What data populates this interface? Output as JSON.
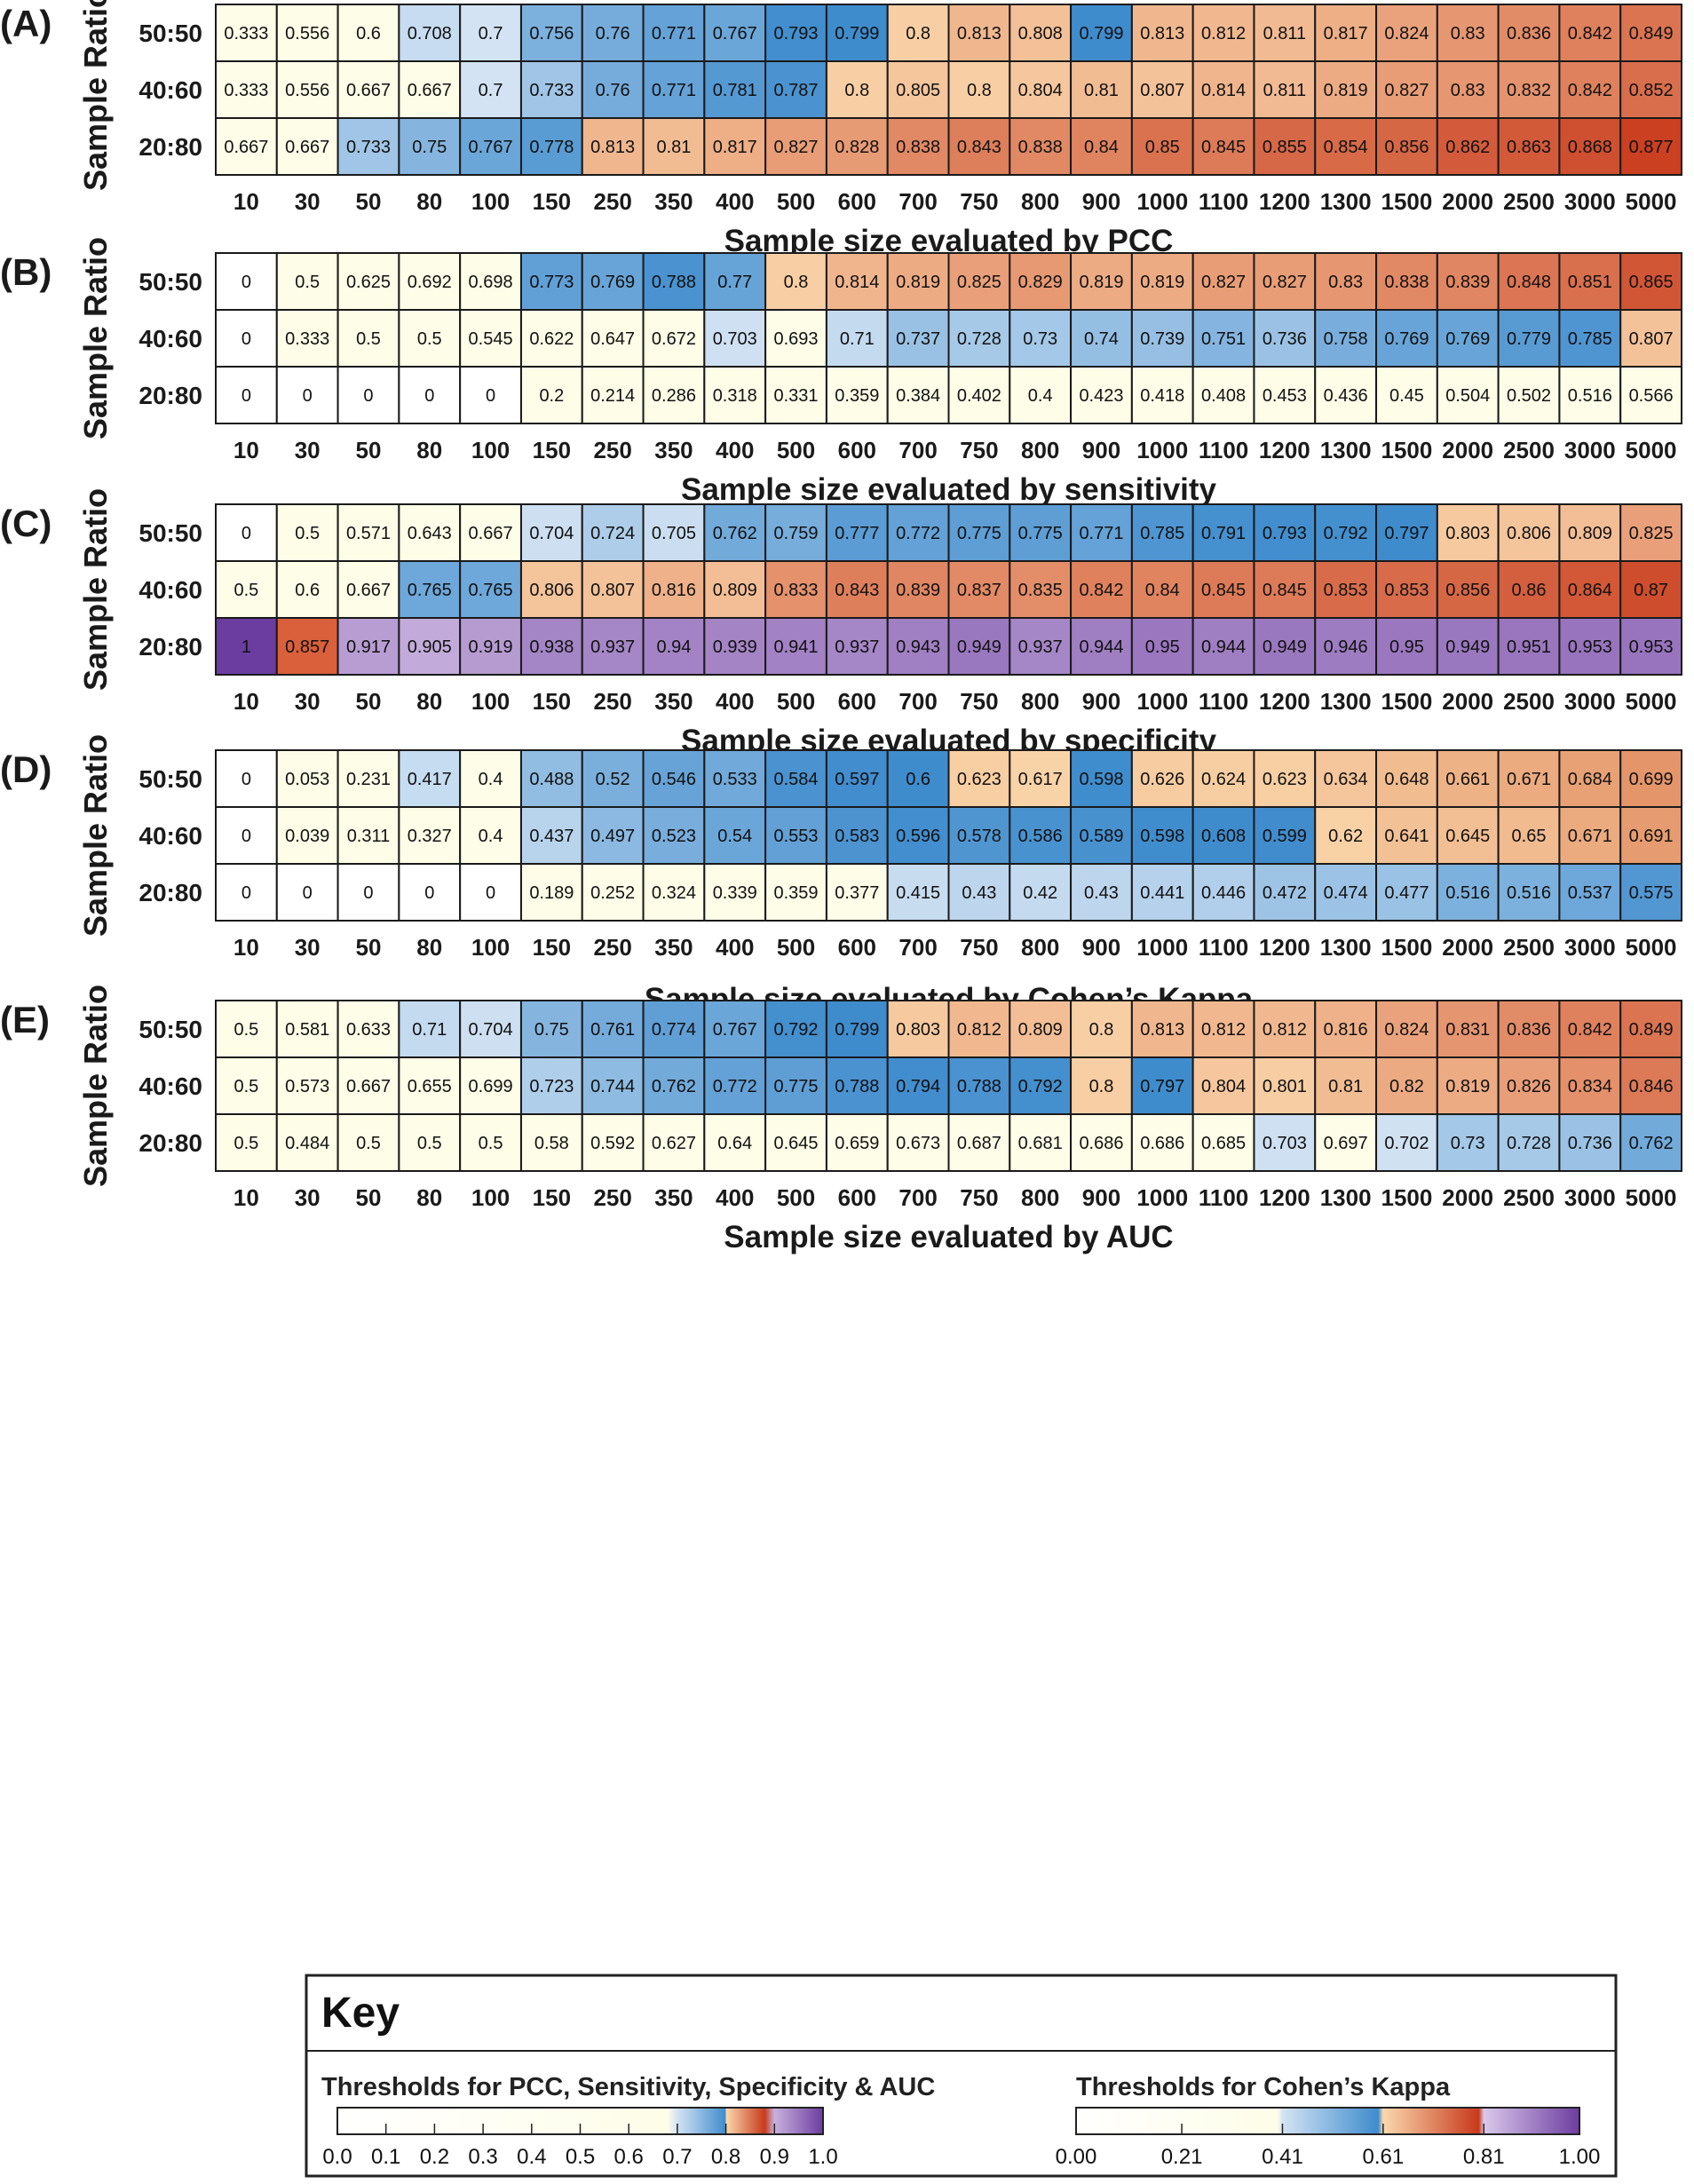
{
  "chart_data": [
    {
      "type": "heatmap",
      "panel": "(A)",
      "ylabel": "Sample Ratio",
      "xlabel": "Sample size evaluated by PCC",
      "rows": [
        "50:50",
        "40:60",
        "20:80"
      ],
      "categories": [
        "10",
        "30",
        "50",
        "80",
        "100",
        "150",
        "250",
        "350",
        "400",
        "500",
        "600",
        "700",
        "750",
        "800",
        "900",
        "1000",
        "1100",
        "1200",
        "1300",
        "1500",
        "2000",
        "2500",
        "3000",
        "5000"
      ],
      "scale": "standard",
      "values": [
        [
          "0.333",
          "0.556",
          "0.6",
          "0.708",
          "0.7",
          "0.756",
          "0.76",
          "0.771",
          "0.767",
          "0.793",
          "0.799",
          "0.8",
          "0.813",
          "0.808",
          "0.799",
          "0.813",
          "0.812",
          "0.811",
          "0.817",
          "0.824",
          "0.83",
          "0.836",
          "0.842",
          "0.849"
        ],
        [
          "0.333",
          "0.556",
          "0.667",
          "0.667",
          "0.7",
          "0.733",
          "0.76",
          "0.771",
          "0.781",
          "0.787",
          "0.8",
          "0.805",
          "0.8",
          "0.804",
          "0.81",
          "0.807",
          "0.814",
          "0.811",
          "0.819",
          "0.827",
          "0.83",
          "0.832",
          "0.842",
          "0.852"
        ],
        [
          "0.667",
          "0.667",
          "0.733",
          "0.75",
          "0.767",
          "0.778",
          "0.813",
          "0.81",
          "0.817",
          "0.827",
          "0.828",
          "0.838",
          "0.843",
          "0.838",
          "0.84",
          "0.85",
          "0.845",
          "0.855",
          "0.854",
          "0.856",
          "0.862",
          "0.863",
          "0.868",
          "0.877"
        ]
      ]
    },
    {
      "type": "heatmap",
      "panel": "(B)",
      "ylabel": "Sample Ratio",
      "xlabel": "Sample size evaluated by sensitivity",
      "rows": [
        "50:50",
        "40:60",
        "20:80"
      ],
      "categories": [
        "10",
        "30",
        "50",
        "80",
        "100",
        "150",
        "250",
        "350",
        "400",
        "500",
        "600",
        "700",
        "750",
        "800",
        "900",
        "1000",
        "1100",
        "1200",
        "1300",
        "1500",
        "2000",
        "2500",
        "3000",
        "5000"
      ],
      "scale": "standard",
      "values": [
        [
          "0",
          "0.5",
          "0.625",
          "0.692",
          "0.698",
          "0.773",
          "0.769",
          "0.788",
          "0.77",
          "0.8",
          "0.814",
          "0.819",
          "0.825",
          "0.829",
          "0.819",
          "0.819",
          "0.827",
          "0.827",
          "0.83",
          "0.838",
          "0.839",
          "0.848",
          "0.851",
          "0.865"
        ],
        [
          "0",
          "0.333",
          "0.5",
          "0.5",
          "0.545",
          "0.622",
          "0.647",
          "0.672",
          "0.703",
          "0.693",
          "0.71",
          "0.737",
          "0.728",
          "0.73",
          "0.74",
          "0.739",
          "0.751",
          "0.736",
          "0.758",
          "0.769",
          "0.769",
          "0.779",
          "0.785",
          "0.807"
        ],
        [
          "0",
          "0",
          "0",
          "0",
          "0",
          "0.2",
          "0.214",
          "0.286",
          "0.318",
          "0.331",
          "0.359",
          "0.384",
          "0.402",
          "0.4",
          "0.423",
          "0.418",
          "0.408",
          "0.453",
          "0.436",
          "0.45",
          "0.504",
          "0.502",
          "0.516",
          "0.566"
        ]
      ]
    },
    {
      "type": "heatmap",
      "panel": "(C)",
      "ylabel": "Sample Ratio",
      "xlabel": "Sample size evaluated by specificity",
      "rows": [
        "50:50",
        "40:60",
        "20:80"
      ],
      "categories": [
        "10",
        "30",
        "50",
        "80",
        "100",
        "150",
        "250",
        "350",
        "400",
        "500",
        "600",
        "700",
        "750",
        "800",
        "900",
        "1000",
        "1100",
        "1200",
        "1300",
        "1500",
        "2000",
        "2500",
        "3000",
        "5000"
      ],
      "scale": "standard",
      "values": [
        [
          "0",
          "0.5",
          "0.571",
          "0.643",
          "0.667",
          "0.704",
          "0.724",
          "0.705",
          "0.762",
          "0.759",
          "0.777",
          "0.772",
          "0.775",
          "0.775",
          "0.771",
          "0.785",
          "0.791",
          "0.793",
          "0.792",
          "0.797",
          "0.803",
          "0.806",
          "0.809",
          "0.825"
        ],
        [
          "0.5",
          "0.6",
          "0.667",
          "0.765",
          "0.765",
          "0.806",
          "0.807",
          "0.816",
          "0.809",
          "0.833",
          "0.843",
          "0.839",
          "0.837",
          "0.835",
          "0.842",
          "0.84",
          "0.845",
          "0.845",
          "0.853",
          "0.853",
          "0.856",
          "0.86",
          "0.864",
          "0.87"
        ],
        [
          "1",
          "0.857",
          "0.917",
          "0.905",
          "0.919",
          "0.938",
          "0.937",
          "0.94",
          "0.939",
          "0.941",
          "0.937",
          "0.943",
          "0.949",
          "0.937",
          "0.944",
          "0.95",
          "0.944",
          "0.949",
          "0.946",
          "0.95",
          "0.949",
          "0.951",
          "0.953",
          "0.953"
        ]
      ]
    },
    {
      "type": "heatmap",
      "panel": "(D)",
      "ylabel": "Sample Ratio",
      "xlabel": "Sample size evaluated by Cohen’s Kappa",
      "rows": [
        "50:50",
        "40:60",
        "20:80"
      ],
      "categories": [
        "10",
        "30",
        "50",
        "80",
        "100",
        "150",
        "250",
        "350",
        "400",
        "500",
        "600",
        "700",
        "750",
        "800",
        "900",
        "1000",
        "1100",
        "1200",
        "1300",
        "1500",
        "2000",
        "2500",
        "3000",
        "5000"
      ],
      "scale": "kappa",
      "values": [
        [
          "0",
          "0.053",
          "0.231",
          "0.417",
          "0.4",
          "0.488",
          "0.52",
          "0.546",
          "0.533",
          "0.584",
          "0.597",
          "0.6",
          "0.623",
          "0.617",
          "0.598",
          "0.626",
          "0.624",
          "0.623",
          "0.634",
          "0.648",
          "0.661",
          "0.671",
          "0.684",
          "0.699"
        ],
        [
          "0",
          "0.039",
          "0.311",
          "0.327",
          "0.4",
          "0.437",
          "0.497",
          "0.523",
          "0.54",
          "0.553",
          "0.583",
          "0.596",
          "0.578",
          "0.586",
          "0.589",
          "0.598",
          "0.608",
          "0.599",
          "0.62",
          "0.641",
          "0.645",
          "0.65",
          "0.671",
          "0.691"
        ],
        [
          "0",
          "0",
          "0",
          "0",
          "0",
          "0.189",
          "0.252",
          "0.324",
          "0.339",
          "0.359",
          "0.377",
          "0.415",
          "0.43",
          "0.42",
          "0.43",
          "0.441",
          "0.446",
          "0.472",
          "0.474",
          "0.477",
          "0.516",
          "0.516",
          "0.537",
          "0.575"
        ]
      ]
    },
    {
      "type": "heatmap",
      "panel": "(E)",
      "ylabel": "Sample Ratio",
      "xlabel": "Sample size evaluated by AUC",
      "rows": [
        "50:50",
        "40:60",
        "20:80"
      ],
      "categories": [
        "10",
        "30",
        "50",
        "80",
        "100",
        "150",
        "250",
        "350",
        "400",
        "500",
        "600",
        "700",
        "750",
        "800",
        "900",
        "1000",
        "1100",
        "1200",
        "1300",
        "1500",
        "2000",
        "2500",
        "3000",
        "5000"
      ],
      "scale": "standard",
      "values": [
        [
          "0.5",
          "0.581",
          "0.633",
          "0.71",
          "0.704",
          "0.75",
          "0.761",
          "0.774",
          "0.767",
          "0.792",
          "0.799",
          "0.803",
          "0.812",
          "0.809",
          "0.8",
          "0.813",
          "0.812",
          "0.812",
          "0.816",
          "0.824",
          "0.831",
          "0.836",
          "0.842",
          "0.849"
        ],
        [
          "0.5",
          "0.573",
          "0.667",
          "0.655",
          "0.699",
          "0.723",
          "0.744",
          "0.762",
          "0.772",
          "0.775",
          "0.788",
          "0.794",
          "0.788",
          "0.792",
          "0.8",
          "0.797",
          "0.804",
          "0.801",
          "0.81",
          "0.82",
          "0.819",
          "0.826",
          "0.834",
          "0.846"
        ],
        [
          "0.5",
          "0.484",
          "0.5",
          "0.5",
          "0.5",
          "0.58",
          "0.592",
          "0.627",
          "0.64",
          "0.645",
          "0.659",
          "0.673",
          "0.687",
          "0.681",
          "0.686",
          "0.686",
          "0.685",
          "0.703",
          "0.697",
          "0.702",
          "0.73",
          "0.728",
          "0.736",
          "0.762"
        ]
      ]
    }
  ],
  "key": {
    "title": "Key",
    "standard": {
      "label": "Thresholds for PCC, Sensitivity, Specificity & AUC",
      "ticks": [
        "0.0",
        "0.1",
        "0.2",
        "0.3",
        "0.4",
        "0.5",
        "0.6",
        "0.7",
        "0.8",
        "0.9",
        "1.0"
      ],
      "domain": [
        0,
        1
      ]
    },
    "kappa": {
      "label": "Thresholds for Cohen’s Kappa",
      "ticks": [
        "0.00",
        "0.21",
        "0.41",
        "0.61",
        "0.81",
        "1.00"
      ],
      "domain": [
        0,
        1
      ]
    }
  }
}
